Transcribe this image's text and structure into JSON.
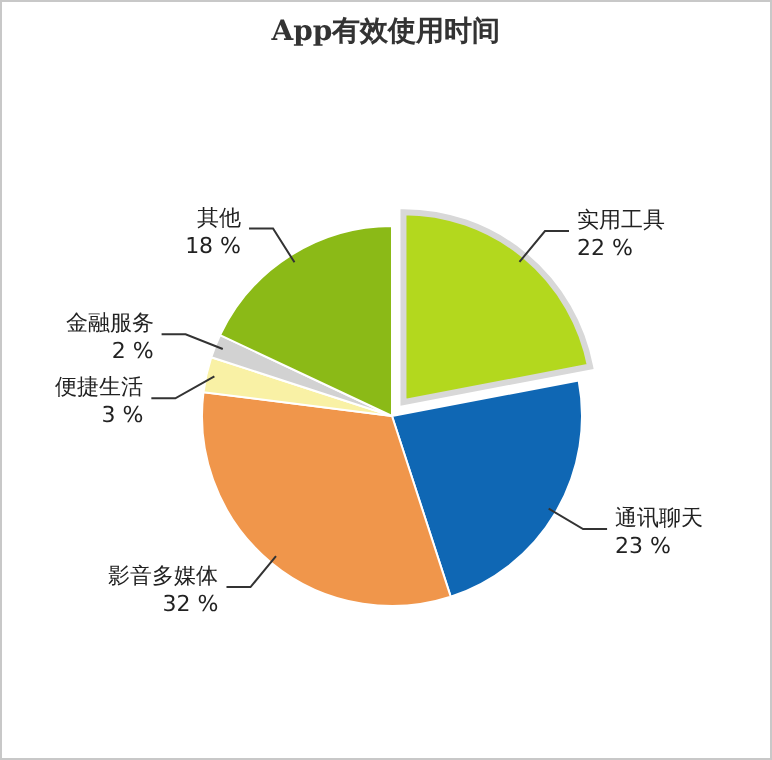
{
  "chart_data": {
    "type": "pie",
    "title": "App有效使用时间",
    "categories": [
      "实用工具",
      "通讯聊天",
      "影音多媒体",
      "便捷生活",
      "金融服务",
      "其他"
    ],
    "values": [
      22,
      23,
      32,
      3,
      2,
      18
    ],
    "colors": [
      "#b3d81e",
      "#0f67b4",
      "#f0964b",
      "#f9f1a5",
      "#d2d2d2",
      "#8bba17"
    ],
    "value_labels": [
      "22 %",
      "23 %",
      "32 %",
      "3 %",
      "2 %",
      "18 %"
    ],
    "legend": false
  }
}
